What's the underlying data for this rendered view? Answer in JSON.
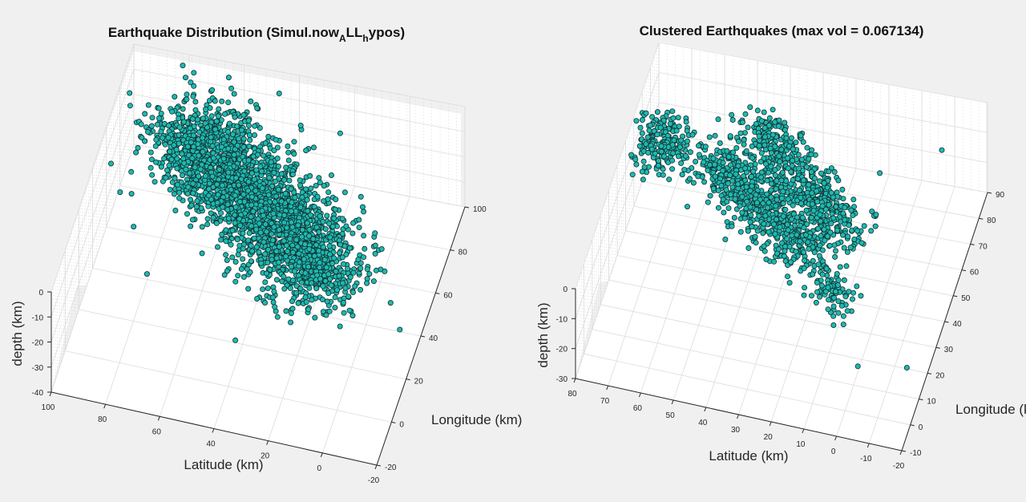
{
  "figure": {
    "background": "#f0f0f0",
    "marker_fill": "#1fb8b0",
    "marker_edge": "#0f2f2e"
  },
  "chart_data": [
    {
      "type": "scatter",
      "title": "Earthquake Distribution (Simul.now",
      "title_sub_1": "A",
      "title_mid": "LL",
      "title_sub_2": "h",
      "title_end": "ypos)",
      "xlabel": "Latitude (km)",
      "ylabel": "Longitude (km)",
      "zlabel": "depth (km)",
      "xlim": [
        -20,
        100
      ],
      "ylim": [
        -20,
        100
      ],
      "zlim": [
        -40,
        0
      ],
      "xticks": [
        "100",
        "80",
        "60",
        "40",
        "20",
        "0",
        "-20"
      ],
      "yticks": [
        "-20",
        "0",
        "20",
        "40",
        "60",
        "80",
        "100"
      ],
      "zticks": [
        "0",
        "-10",
        "-20",
        "-30",
        "-40"
      ],
      "grid": true,
      "points_count": 2600,
      "outliers": [
        {
          "x": 80,
          "y": 95,
          "z": -5
        },
        {
          "x": 70,
          "y": 90,
          "z": -8
        },
        {
          "x": 60,
          "y": 85,
          "z": -6
        },
        {
          "x": 90,
          "y": 70,
          "z": -10
        },
        {
          "x": 95,
          "y": 60,
          "z": -25
        },
        {
          "x": 20,
          "y": 80,
          "z": -2
        },
        {
          "x": 0,
          "y": 60,
          "z": -35
        },
        {
          "x": -15,
          "y": 30,
          "z": -30
        },
        {
          "x": 40,
          "y": 10,
          "z": -30
        },
        {
          "x": 75,
          "y": 20,
          "z": -20
        },
        {
          "x": 85,
          "y": 40,
          "z": -20
        },
        {
          "x": 70,
          "y": 60,
          "z": -15
        }
      ]
    },
    {
      "type": "scatter",
      "title": "Clustered Earthquakes (max vol = 0.067134)",
      "xlabel": "Latitude (km)",
      "ylabel": "Longitude (km)",
      "zlabel": "depth (km)",
      "xlim": [
        -20,
        80
      ],
      "ylim": [
        -10,
        90
      ],
      "zlim": [
        -30,
        0
      ],
      "xticks": [
        "80",
        "70",
        "60",
        "50",
        "40",
        "30",
        "20",
        "10",
        "0",
        "-10",
        "-20"
      ],
      "yticks": [
        "-10",
        "0",
        "10",
        "20",
        "30",
        "40",
        "50",
        "60",
        "70",
        "80",
        "90"
      ],
      "zticks": [
        "0",
        "-10",
        "-20",
        "-30"
      ],
      "grid": true,
      "points_count": 1500,
      "outliers": [
        {
          "x": 5,
          "y": 60,
          "z": -3
        },
        {
          "x": -10,
          "y": 75,
          "z": -5
        },
        {
          "x": -15,
          "y": 15,
          "z": -25
        },
        {
          "x": 0,
          "y": 15,
          "z": -28
        },
        {
          "x": 10,
          "y": 25,
          "z": -20
        }
      ]
    }
  ]
}
